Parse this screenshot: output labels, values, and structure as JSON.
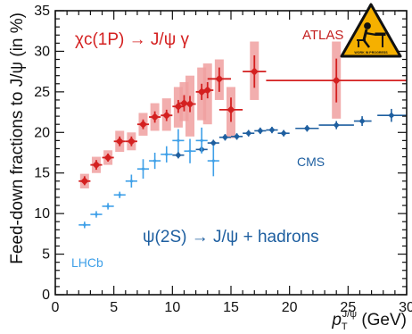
{
  "chart_data": {
    "type": "scatter",
    "xlabel": "p_T^{J/ψ} (GeV)",
    "xlabel_main": "p",
    "xlabel_sub": "T",
    "xlabel_sup": "J/ψ",
    "xlabel_unit": "(GeV)",
    "ylabel": "Feed-down fractions to J/ψ (in %)",
    "xlim": [
      0,
      30
    ],
    "ylim": [
      0,
      35
    ],
    "x_ticks": [
      0,
      5,
      10,
      15,
      20,
      25,
      30
    ],
    "y_ticks": [
      0,
      5,
      10,
      15,
      20,
      25,
      30,
      35
    ],
    "grid": false,
    "annotations": {
      "chic_label": "χc(1P) → J/ψ γ",
      "psi_label": "ψ(2S) → J/ψ + hadrons",
      "atlas_label": "ATLAS",
      "cms_label": "CMS",
      "lhcb_label": "LHCb",
      "badge_text": "WORK IN PROGRESS"
    },
    "colors": {
      "chic": "#d42020",
      "chic_band": "#f0a0a0",
      "cms": "#1e5fa0",
      "lhcb": "#3fa0e8",
      "badge": "#f5b000"
    },
    "series": [
      {
        "name": "ATLAS",
        "marker": "diamond",
        "points": [
          {
            "x": 2.5,
            "xlo": 2.0,
            "xhi": 3.0,
            "y": 14.0,
            "ylo": 13.5,
            "yhi": 14.6,
            "band_lo": 13.1,
            "band_hi": 14.9
          },
          {
            "x": 3.5,
            "xlo": 3.0,
            "xhi": 4.0,
            "y": 16.0,
            "ylo": 15.4,
            "yhi": 16.6,
            "band_lo": 15.0,
            "band_hi": 17.0
          },
          {
            "x": 4.5,
            "xlo": 4.0,
            "xhi": 5.0,
            "y": 16.9,
            "ylo": 16.4,
            "yhi": 17.4,
            "band_lo": 16.0,
            "band_hi": 17.8
          },
          {
            "x": 5.5,
            "xlo": 5.0,
            "xhi": 6.0,
            "y": 18.9,
            "ylo": 18.3,
            "yhi": 19.5,
            "band_lo": 17.6,
            "band_hi": 20.2
          },
          {
            "x": 6.5,
            "xlo": 6.0,
            "xhi": 7.0,
            "y": 18.9,
            "ylo": 18.3,
            "yhi": 19.5,
            "band_lo": 17.8,
            "band_hi": 20.0
          },
          {
            "x": 7.5,
            "xlo": 7.0,
            "xhi": 8.0,
            "y": 21.0,
            "ylo": 20.4,
            "yhi": 21.6,
            "band_lo": 19.6,
            "band_hi": 22.4
          },
          {
            "x": 8.5,
            "xlo": 8.0,
            "xhi": 9.0,
            "y": 21.9,
            "ylo": 21.2,
            "yhi": 22.6,
            "band_lo": 20.2,
            "band_hi": 23.6
          },
          {
            "x": 9.5,
            "xlo": 9.0,
            "xhi": 10.0,
            "y": 22.1,
            "ylo": 21.4,
            "yhi": 22.8,
            "band_lo": 20.2,
            "band_hi": 24.2
          },
          {
            "x": 10.5,
            "xlo": 10.0,
            "xhi": 11.0,
            "y": 23.2,
            "ylo": 22.4,
            "yhi": 24.0,
            "band_lo": 20.6,
            "band_hi": 25.6
          },
          {
            "x": 11.0,
            "xlo": 10.5,
            "xhi": 11.5,
            "y": 23.6,
            "ylo": 22.6,
            "yhi": 24.6,
            "band_lo": 21.4,
            "band_hi": 26.2
          },
          {
            "x": 11.5,
            "xlo": 11.0,
            "xhi": 12.0,
            "y": 23.5,
            "ylo": 22.5,
            "yhi": 24.5,
            "band_lo": 19.5,
            "band_hi": 27.0
          },
          {
            "x": 12.5,
            "xlo": 12.0,
            "xhi": 13.0,
            "y": 25.0,
            "ylo": 24.0,
            "yhi": 26.0,
            "band_lo": 21.5,
            "band_hi": 28.0
          },
          {
            "x": 13.0,
            "xlo": 12.5,
            "xhi": 13.5,
            "y": 25.2,
            "ylo": 24.2,
            "yhi": 26.2,
            "band_lo": 21.0,
            "band_hi": 28.5
          },
          {
            "x": 14.0,
            "xlo": 13.0,
            "xhi": 15.0,
            "y": 26.6,
            "ylo": 25.0,
            "yhi": 28.0,
            "band_lo": 24.0,
            "band_hi": 29.0
          },
          {
            "x": 15.0,
            "xlo": 14.0,
            "xhi": 16.0,
            "y": 22.8,
            "ylo": 21.3,
            "yhi": 24.3,
            "band_lo": 19.3,
            "band_hi": 25.6
          },
          {
            "x": 17.0,
            "xlo": 16.0,
            "xhi": 18.0,
            "y": 27.5,
            "ylo": 25.5,
            "yhi": 29.5,
            "band_lo": 24.0,
            "band_hi": 31.2
          },
          {
            "x": 24.0,
            "xlo": 18.0,
            "xhi": 30.0,
            "y": 26.4,
            "ylo": 23.7,
            "yhi": 29.1,
            "band_lo": 21.7,
            "band_hi": 31.2
          }
        ]
      },
      {
        "name": "CMS",
        "marker": "diamond",
        "points": [
          {
            "x": 10.5,
            "xlo": 10.0,
            "xhi": 11.0,
            "y": 17.2,
            "ylo": 16.8,
            "yhi": 17.6
          },
          {
            "x": 12.5,
            "xlo": 12.0,
            "xhi": 13.0,
            "y": 17.9,
            "ylo": 17.5,
            "yhi": 18.3
          },
          {
            "x": 13.5,
            "xlo": 13.0,
            "xhi": 14.0,
            "y": 18.7,
            "ylo": 18.3,
            "yhi": 19.1
          },
          {
            "x": 14.5,
            "xlo": 14.0,
            "xhi": 15.0,
            "y": 19.4,
            "ylo": 19.0,
            "yhi": 19.8
          },
          {
            "x": 15.5,
            "xlo": 15.0,
            "xhi": 16.0,
            "y": 19.5,
            "ylo": 19.1,
            "yhi": 19.9
          },
          {
            "x": 16.5,
            "xlo": 16.0,
            "xhi": 17.0,
            "y": 19.9,
            "ylo": 19.5,
            "yhi": 20.3
          },
          {
            "x": 17.5,
            "xlo": 17.0,
            "xhi": 18.0,
            "y": 20.2,
            "ylo": 19.8,
            "yhi": 20.6
          },
          {
            "x": 18.5,
            "xlo": 18.0,
            "xhi": 19.0,
            "y": 20.3,
            "ylo": 19.9,
            "yhi": 20.7
          },
          {
            "x": 19.5,
            "xlo": 19.0,
            "xhi": 20.0,
            "y": 19.9,
            "ylo": 19.5,
            "yhi": 20.3
          },
          {
            "x": 21.5,
            "xlo": 20.5,
            "xhi": 22.5,
            "y": 20.5,
            "ylo": 20.1,
            "yhi": 20.9
          },
          {
            "x": 24.0,
            "xlo": 22.5,
            "xhi": 25.5,
            "y": 20.9,
            "ylo": 20.4,
            "yhi": 21.4
          },
          {
            "x": 26.2,
            "xlo": 25.5,
            "xhi": 27.0,
            "y": 21.4,
            "ylo": 20.8,
            "yhi": 22.0
          },
          {
            "x": 28.7,
            "xlo": 27.5,
            "xhi": 30.0,
            "y": 22.1,
            "ylo": 21.3,
            "yhi": 22.9
          }
        ]
      },
      {
        "name": "LHCb",
        "marker": "cross",
        "points": [
          {
            "x": 2.5,
            "xlo": 2.0,
            "xhi": 3.0,
            "y": 8.6,
            "ylo": 8.2,
            "yhi": 9.0
          },
          {
            "x": 3.5,
            "xlo": 3.0,
            "xhi": 4.0,
            "y": 9.9,
            "ylo": 9.5,
            "yhi": 10.3
          },
          {
            "x": 4.5,
            "xlo": 4.0,
            "xhi": 5.0,
            "y": 10.9,
            "ylo": 10.5,
            "yhi": 11.3
          },
          {
            "x": 5.5,
            "xlo": 5.0,
            "xhi": 6.0,
            "y": 12.3,
            "ylo": 11.9,
            "yhi": 12.7
          },
          {
            "x": 6.5,
            "xlo": 6.0,
            "xhi": 7.0,
            "y": 14.0,
            "ylo": 13.2,
            "yhi": 14.8
          },
          {
            "x": 7.5,
            "xlo": 7.0,
            "xhi": 8.0,
            "y": 15.5,
            "ylo": 14.3,
            "yhi": 16.7
          },
          {
            "x": 8.5,
            "xlo": 8.0,
            "xhi": 9.0,
            "y": 16.5,
            "ylo": 15.5,
            "yhi": 17.5
          },
          {
            "x": 9.5,
            "xlo": 9.0,
            "xhi": 10.0,
            "y": 17.3,
            "ylo": 16.3,
            "yhi": 18.3
          },
          {
            "x": 10.5,
            "xlo": 10.0,
            "xhi": 11.0,
            "y": 19.0,
            "ylo": 17.6,
            "yhi": 20.4
          },
          {
            "x": 11.5,
            "xlo": 11.0,
            "xhi": 12.0,
            "y": 17.7,
            "ylo": 16.2,
            "yhi": 19.2
          },
          {
            "x": 12.5,
            "xlo": 12.0,
            "xhi": 13.0,
            "y": 19.0,
            "ylo": 17.4,
            "yhi": 20.6
          },
          {
            "x": 13.5,
            "xlo": 13.0,
            "xhi": 14.0,
            "y": 16.5,
            "ylo": 14.6,
            "yhi": 18.4
          }
        ]
      }
    ]
  }
}
